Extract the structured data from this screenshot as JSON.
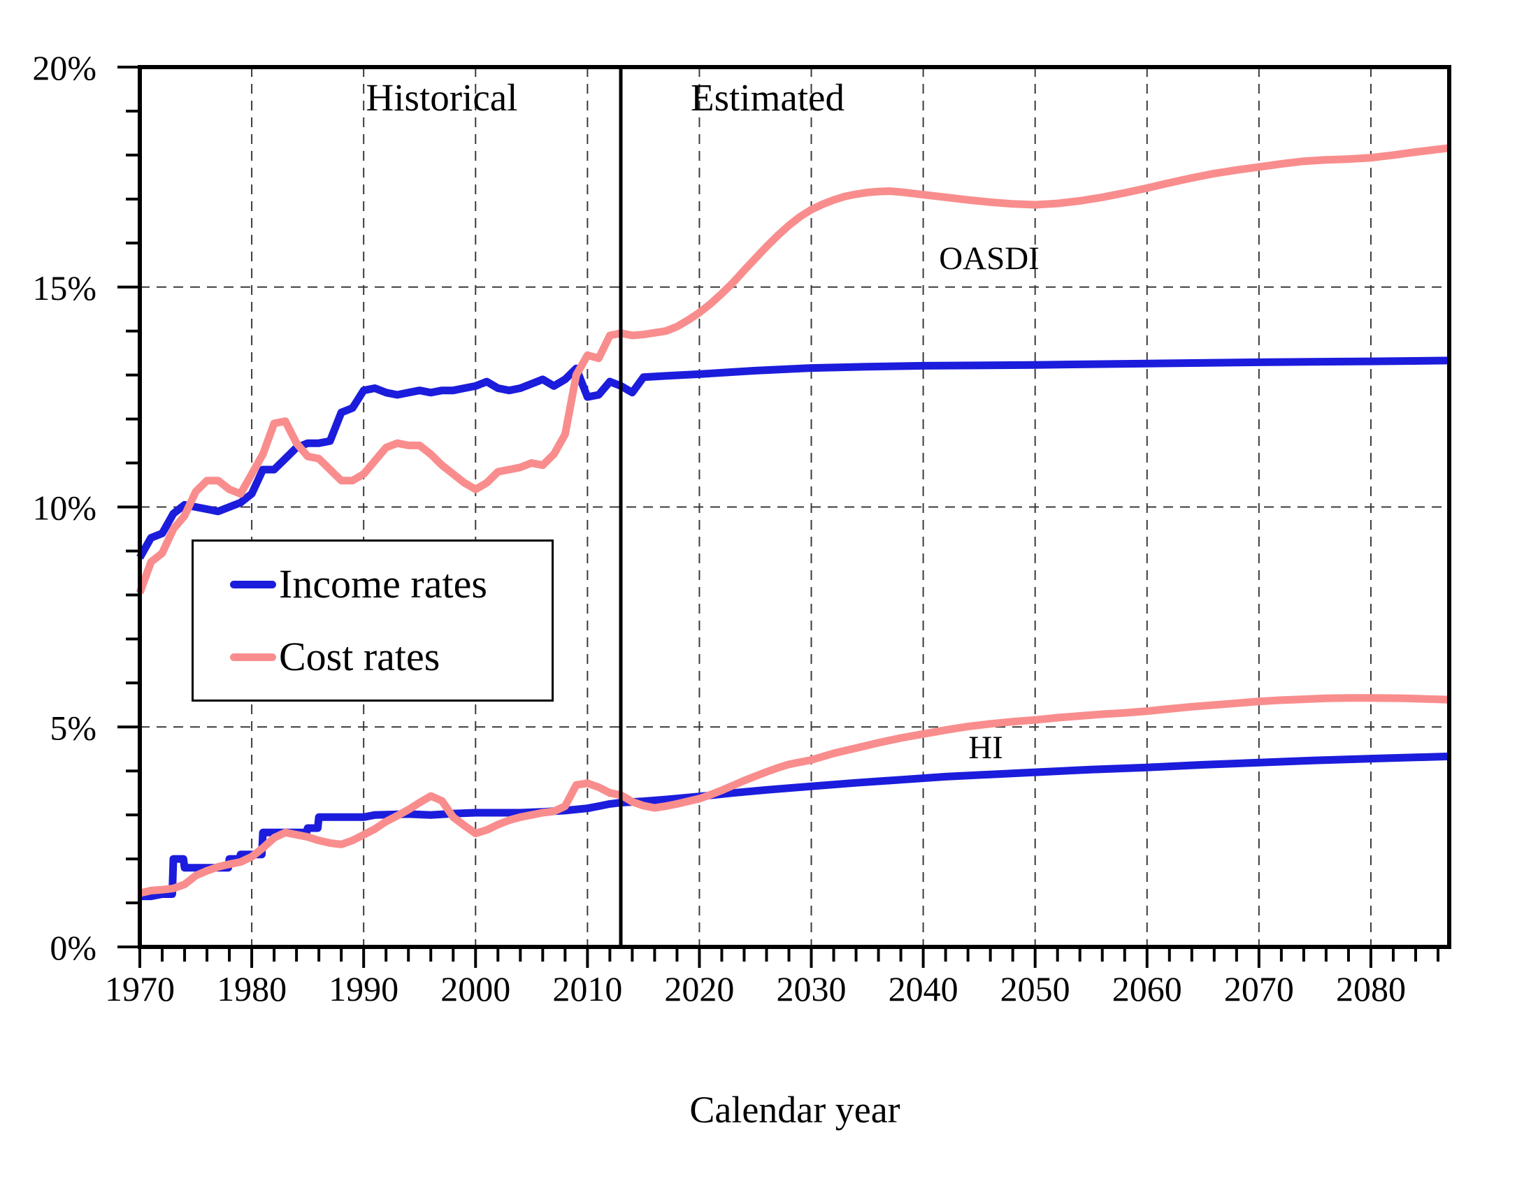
{
  "figure": {
    "historical_label": "Historical",
    "estimated_label": "Estimated",
    "oasdi_label": "OASDI",
    "hi_label": "HI",
    "xlabel": "Calendar year"
  },
  "legend": {
    "items": [
      {
        "label": "Income rates",
        "color": "#1c1cdc"
      },
      {
        "label": "Cost rates",
        "color": "#f98d8d"
      }
    ]
  },
  "colors": {
    "income_line": "#1c1cdc",
    "cost_line": "#f98d8d",
    "axis": "#000000",
    "gridline": "#3a3a3a",
    "background": "#ffffff"
  },
  "chart_data": {
    "type": "line",
    "title": "",
    "xlabel": "Calendar year",
    "ylabel": "",
    "x_range": [
      1970,
      2087
    ],
    "y_range_percent": [
      0,
      20
    ],
    "divider_year": 2013,
    "grid": "dashed verticals each decade 1980-2080; dashed horizontals at 5%, 10%, 15%",
    "legend_position": "upper-left-inside",
    "x_major_ticks": [
      1970,
      1980,
      1990,
      2000,
      2010,
      2020,
      2030,
      2040,
      2050,
      2060,
      2070,
      2080
    ],
    "x_tick_labels": [
      "1970",
      "1980",
      "1990",
      "2000",
      "2010",
      "2020",
      "2030",
      "2040",
      "2050",
      "2060",
      "2070",
      "2080"
    ],
    "x_minor_tick_step_years": 2,
    "y_major_ticks": [
      0,
      5,
      10,
      15,
      20
    ],
    "y_tick_labels": [
      "0%",
      "5%",
      "10%",
      "15%",
      "20%"
    ],
    "y_minor_tick_step": 1,
    "annotations": [
      {
        "text": "Historical",
        "region": "left of 2013 divider"
      },
      {
        "text": "Estimated",
        "region": "right of 2013 divider"
      },
      {
        "text": "OASDI",
        "near_year": 2046,
        "near_value": 15.8
      },
      {
        "text": "HI",
        "near_year": 2045,
        "near_value": 4.6
      }
    ],
    "series": [
      {
        "name": "OASDI income rate",
        "legend": "Income rates",
        "color": "#1c1cdc",
        "points": [
          [
            1970,
            8.85
          ],
          [
            1971,
            9.3
          ],
          [
            1972,
            9.4
          ],
          [
            1973,
            9.85
          ],
          [
            1974,
            10.05
          ],
          [
            1975,
            10.0
          ],
          [
            1976,
            9.95
          ],
          [
            1977,
            9.9
          ],
          [
            1978,
            10.0
          ],
          [
            1979,
            10.1
          ],
          [
            1980,
            10.3
          ],
          [
            1981,
            10.85
          ],
          [
            1982,
            10.85
          ],
          [
            1983,
            11.1
          ],
          [
            1984,
            11.35
          ],
          [
            1985,
            11.45
          ],
          [
            1986,
            11.45
          ],
          [
            1987,
            11.5
          ],
          [
            1988,
            12.15
          ],
          [
            1989,
            12.25
          ],
          [
            1990,
            12.65
          ],
          [
            1991,
            12.7
          ],
          [
            1992,
            12.6
          ],
          [
            1993,
            12.55
          ],
          [
            1994,
            12.6
          ],
          [
            1995,
            12.65
          ],
          [
            1996,
            12.6
          ],
          [
            1997,
            12.65
          ],
          [
            1998,
            12.65
          ],
          [
            1999,
            12.7
          ],
          [
            2000,
            12.75
          ],
          [
            2001,
            12.85
          ],
          [
            2002,
            12.7
          ],
          [
            2003,
            12.65
          ],
          [
            2004,
            12.7
          ],
          [
            2005,
            12.8
          ],
          [
            2006,
            12.9
          ],
          [
            2007,
            12.75
          ],
          [
            2008,
            12.9
          ],
          [
            2009,
            13.15
          ],
          [
            2010,
            12.5
          ],
          [
            2011,
            12.55
          ],
          [
            2012,
            12.85
          ],
          [
            2013,
            12.75
          ],
          [
            2014,
            12.6
          ],
          [
            2015,
            12.95
          ],
          [
            2017,
            12.98
          ],
          [
            2020,
            13.02
          ],
          [
            2025,
            13.1
          ],
          [
            2030,
            13.16
          ],
          [
            2035,
            13.19
          ],
          [
            2040,
            13.21
          ],
          [
            2050,
            13.23
          ],
          [
            2060,
            13.26
          ],
          [
            2070,
            13.29
          ],
          [
            2080,
            13.31
          ],
          [
            2087,
            13.33
          ]
        ]
      },
      {
        "name": "HI income rate",
        "legend": "Income rates",
        "color": "#1c1cdc",
        "points": [
          [
            1970,
            1.15
          ],
          [
            1971,
            1.15
          ],
          [
            1972,
            1.2
          ],
          [
            1972.9,
            1.2
          ],
          [
            1973,
            2.0
          ],
          [
            1973.9,
            2.0
          ],
          [
            1974,
            1.8
          ],
          [
            1977.9,
            1.8
          ],
          [
            1978,
            2.0
          ],
          [
            1978.9,
            2.0
          ],
          [
            1979,
            2.1
          ],
          [
            1980.9,
            2.1
          ],
          [
            1981,
            2.6
          ],
          [
            1984.9,
            2.6
          ],
          [
            1985,
            2.7
          ],
          [
            1985.9,
            2.7
          ],
          [
            1986,
            2.95
          ],
          [
            1990,
            2.95
          ],
          [
            1991,
            3.0
          ],
          [
            1994,
            3.02
          ],
          [
            1996,
            3.0
          ],
          [
            1998,
            3.03
          ],
          [
            2000,
            3.05
          ],
          [
            2004,
            3.05
          ],
          [
            2006,
            3.07
          ],
          [
            2008,
            3.1
          ],
          [
            2010,
            3.15
          ],
          [
            2011,
            3.2
          ],
          [
            2012,
            3.25
          ],
          [
            2013,
            3.28
          ],
          [
            2015,
            3.31
          ],
          [
            2017,
            3.35
          ],
          [
            2020,
            3.42
          ],
          [
            2023,
            3.5
          ],
          [
            2026,
            3.57
          ],
          [
            2030,
            3.65
          ],
          [
            2034,
            3.73
          ],
          [
            2038,
            3.8
          ],
          [
            2042,
            3.87
          ],
          [
            2046,
            3.92
          ],
          [
            2050,
            3.97
          ],
          [
            2055,
            4.03
          ],
          [
            2060,
            4.08
          ],
          [
            2065,
            4.14
          ],
          [
            2070,
            4.19
          ],
          [
            2075,
            4.24
          ],
          [
            2080,
            4.28
          ],
          [
            2087,
            4.33
          ]
        ]
      },
      {
        "name": "OASDI cost rate",
        "legend": "Cost rates",
        "color": "#f98d8d",
        "points": [
          [
            1970,
            8.05
          ],
          [
            1971,
            8.75
          ],
          [
            1972,
            8.95
          ],
          [
            1973,
            9.5
          ],
          [
            1974,
            9.8
          ],
          [
            1975,
            10.35
          ],
          [
            1976,
            10.6
          ],
          [
            1977,
            10.6
          ],
          [
            1978,
            10.4
          ],
          [
            1979,
            10.3
          ],
          [
            1980,
            10.75
          ],
          [
            1981,
            11.2
          ],
          [
            1982,
            11.9
          ],
          [
            1983,
            11.95
          ],
          [
            1984,
            11.45
          ],
          [
            1985,
            11.15
          ],
          [
            1986,
            11.1
          ],
          [
            1987,
            10.85
          ],
          [
            1988,
            10.6
          ],
          [
            1989,
            10.6
          ],
          [
            1990,
            10.75
          ],
          [
            1991,
            11.05
          ],
          [
            1992,
            11.35
          ],
          [
            1993,
            11.45
          ],
          [
            1994,
            11.4
          ],
          [
            1995,
            11.4
          ],
          [
            1996,
            11.2
          ],
          [
            1997,
            10.95
          ],
          [
            1998,
            10.75
          ],
          [
            1999,
            10.55
          ],
          [
            2000,
            10.4
          ],
          [
            2001,
            10.55
          ],
          [
            2002,
            10.8
          ],
          [
            2003,
            10.85
          ],
          [
            2004,
            10.9
          ],
          [
            2005,
            11.0
          ],
          [
            2006,
            10.95
          ],
          [
            2007,
            11.2
          ],
          [
            2008,
            11.65
          ],
          [
            2009,
            13.0
          ],
          [
            2010,
            13.45
          ],
          [
            2011,
            13.38
          ],
          [
            2012,
            13.9
          ],
          [
            2013,
            13.95
          ],
          [
            2014,
            13.9
          ],
          [
            2015,
            13.92
          ],
          [
            2016,
            13.96
          ],
          [
            2017,
            14.0
          ],
          [
            2018,
            14.1
          ],
          [
            2019,
            14.25
          ],
          [
            2020,
            14.42
          ],
          [
            2021,
            14.62
          ],
          [
            2022,
            14.85
          ],
          [
            2023,
            15.1
          ],
          [
            2024,
            15.38
          ],
          [
            2025,
            15.65
          ],
          [
            2026,
            15.92
          ],
          [
            2027,
            16.17
          ],
          [
            2028,
            16.4
          ],
          [
            2029,
            16.6
          ],
          [
            2030,
            16.76
          ],
          [
            2031,
            16.88
          ],
          [
            2032,
            16.98
          ],
          [
            2033,
            17.06
          ],
          [
            2034,
            17.11
          ],
          [
            2035,
            17.15
          ],
          [
            2036,
            17.17
          ],
          [
            2037,
            17.18
          ],
          [
            2038,
            17.16
          ],
          [
            2039,
            17.13
          ],
          [
            2040,
            17.1
          ],
          [
            2042,
            17.04
          ],
          [
            2044,
            16.98
          ],
          [
            2046,
            16.93
          ],
          [
            2048,
            16.89
          ],
          [
            2050,
            16.87
          ],
          [
            2052,
            16.9
          ],
          [
            2054,
            16.96
          ],
          [
            2056,
            17.04
          ],
          [
            2058,
            17.14
          ],
          [
            2060,
            17.25
          ],
          [
            2062,
            17.37
          ],
          [
            2064,
            17.48
          ],
          [
            2066,
            17.58
          ],
          [
            2068,
            17.66
          ],
          [
            2070,
            17.73
          ],
          [
            2072,
            17.8
          ],
          [
            2074,
            17.86
          ],
          [
            2076,
            17.89
          ],
          [
            2078,
            17.91
          ],
          [
            2080,
            17.94
          ],
          [
            2082,
            18.0
          ],
          [
            2084,
            18.07
          ],
          [
            2086,
            18.13
          ],
          [
            2087,
            18.16
          ]
        ]
      },
      {
        "name": "HI cost rate",
        "legend": "Cost rates",
        "color": "#f98d8d",
        "points": [
          [
            1970,
            1.22
          ],
          [
            1971,
            1.28
          ],
          [
            1972,
            1.3
          ],
          [
            1973,
            1.33
          ],
          [
            1974,
            1.42
          ],
          [
            1975,
            1.62
          ],
          [
            1976,
            1.73
          ],
          [
            1977,
            1.82
          ],
          [
            1978,
            1.88
          ],
          [
            1979,
            1.93
          ],
          [
            1980,
            2.05
          ],
          [
            1981,
            2.25
          ],
          [
            1982,
            2.48
          ],
          [
            1983,
            2.6
          ],
          [
            1984,
            2.55
          ],
          [
            1985,
            2.5
          ],
          [
            1986,
            2.42
          ],
          [
            1987,
            2.36
          ],
          [
            1988,
            2.33
          ],
          [
            1989,
            2.42
          ],
          [
            1990,
            2.55
          ],
          [
            1991,
            2.68
          ],
          [
            1992,
            2.85
          ],
          [
            1993,
            2.98
          ],
          [
            1994,
            3.12
          ],
          [
            1995,
            3.28
          ],
          [
            1996,
            3.43
          ],
          [
            1997,
            3.32
          ],
          [
            1998,
            2.95
          ],
          [
            1999,
            2.76
          ],
          [
            2000,
            2.58
          ],
          [
            2001,
            2.66
          ],
          [
            2002,
            2.78
          ],
          [
            2003,
            2.88
          ],
          [
            2004,
            2.95
          ],
          [
            2005,
            3.0
          ],
          [
            2006,
            3.05
          ],
          [
            2007,
            3.08
          ],
          [
            2008,
            3.2
          ],
          [
            2009,
            3.68
          ],
          [
            2010,
            3.72
          ],
          [
            2011,
            3.63
          ],
          [
            2012,
            3.5
          ],
          [
            2013,
            3.45
          ],
          [
            2014,
            3.3
          ],
          [
            2015,
            3.21
          ],
          [
            2016,
            3.16
          ],
          [
            2017,
            3.2
          ],
          [
            2018,
            3.25
          ],
          [
            2019,
            3.31
          ],
          [
            2020,
            3.37
          ],
          [
            2021,
            3.46
          ],
          [
            2022,
            3.56
          ],
          [
            2023,
            3.67
          ],
          [
            2024,
            3.78
          ],
          [
            2025,
            3.88
          ],
          [
            2026,
            3.98
          ],
          [
            2027,
            4.07
          ],
          [
            2028,
            4.15
          ],
          [
            2029,
            4.2
          ],
          [
            2030,
            4.25
          ],
          [
            2032,
            4.4
          ],
          [
            2034,
            4.52
          ],
          [
            2036,
            4.64
          ],
          [
            2038,
            4.75
          ],
          [
            2040,
            4.84
          ],
          [
            2042,
            4.93
          ],
          [
            2044,
            5.01
          ],
          [
            2046,
            5.07
          ],
          [
            2048,
            5.12
          ],
          [
            2050,
            5.16
          ],
          [
            2052,
            5.21
          ],
          [
            2054,
            5.25
          ],
          [
            2056,
            5.29
          ],
          [
            2058,
            5.32
          ],
          [
            2060,
            5.36
          ],
          [
            2062,
            5.41
          ],
          [
            2064,
            5.46
          ],
          [
            2066,
            5.5
          ],
          [
            2068,
            5.54
          ],
          [
            2070,
            5.58
          ],
          [
            2072,
            5.61
          ],
          [
            2074,
            5.63
          ],
          [
            2076,
            5.65
          ],
          [
            2078,
            5.66
          ],
          [
            2080,
            5.66
          ],
          [
            2083,
            5.65
          ],
          [
            2087,
            5.62
          ]
        ]
      }
    ]
  }
}
